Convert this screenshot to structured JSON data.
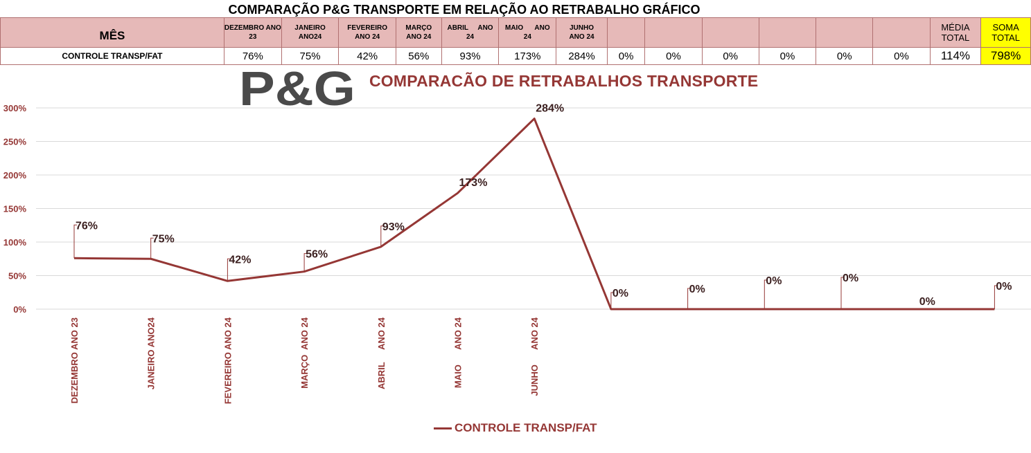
{
  "header": {
    "title": "COMPARAÇÃO P&G  TRANSPORTE EM RELAÇÃO AO RETRABALHO GRÁFICO",
    "mes_label": "MÊS",
    "row_label": "CONTROLE TRANSP/FAT",
    "months": [
      {
        "l1": "DEZEMBRO ANO",
        "l2": "23",
        "value": "76%"
      },
      {
        "l1": "JANEIRO",
        "l2": "ANO24",
        "value": "75%"
      },
      {
        "l1": "FEVEREIRO",
        "l2": "ANO 24",
        "value": "42%"
      },
      {
        "l1": "MARÇO",
        "l2": "ANO 24",
        "value": "56%"
      },
      {
        "l1": "ABRIL     ANO",
        "l2": "24",
        "value": "93%"
      },
      {
        "l1": "MAIO      ANO",
        "l2": "24",
        "value": "173%"
      },
      {
        "l1": "JUNHO",
        "l2": "ANO 24",
        "value": "284%"
      },
      {
        "l1": "",
        "l2": "",
        "value": "0%"
      },
      {
        "l1": "",
        "l2": "",
        "value": "0%"
      },
      {
        "l1": "",
        "l2": "",
        "value": "0%"
      },
      {
        "l1": "",
        "l2": "",
        "value": "0%"
      },
      {
        "l1": "",
        "l2": "",
        "value": "0%"
      },
      {
        "l1": "",
        "l2": "",
        "value": "0%"
      }
    ],
    "media_l1": "MÉDIA",
    "media_l2": "TOTAL",
    "media_value": "114%",
    "soma_l1": "SOMA",
    "soma_l2": "TOTAL",
    "soma_value": "798%"
  },
  "logo_text": "P&G",
  "colors": {
    "series": "#953735",
    "header_fill": "#e6b9b8",
    "highlight": "#ffff00"
  },
  "chart_data": {
    "type": "line",
    "title": "COMPARACÃO DE RETRABALHOS TRANSPORTE",
    "categories": [
      "DEZEMBRO ANO 23",
      "JANEIRO ANO24",
      "FEVEREIRO ANO 24",
      "MARÇO  ANO 24",
      "ABRIL     ANO 24",
      "MAIO      ANO 24",
      "JUNHO      ANO 24",
      "",
      "",
      "",
      "",
      "",
      ""
    ],
    "series": [
      {
        "name": "CONTROLE TRANSP/FAT",
        "values": [
          76,
          75,
          42,
          56,
          93,
          173,
          284,
          0,
          0,
          0,
          0,
          0,
          0
        ]
      }
    ],
    "data_labels": [
      "76%",
      "75%",
      "42%",
      "56%",
      "93%",
      "173%",
      "284%",
      "0%",
      "0%",
      "0%",
      "0%",
      "0%",
      "0%"
    ],
    "yticks": [
      "0%",
      "50%",
      "100%",
      "150%",
      "200%",
      "250%",
      "300%"
    ],
    "ylim": [
      0,
      300
    ],
    "grid": true,
    "legend": "bottom"
  }
}
